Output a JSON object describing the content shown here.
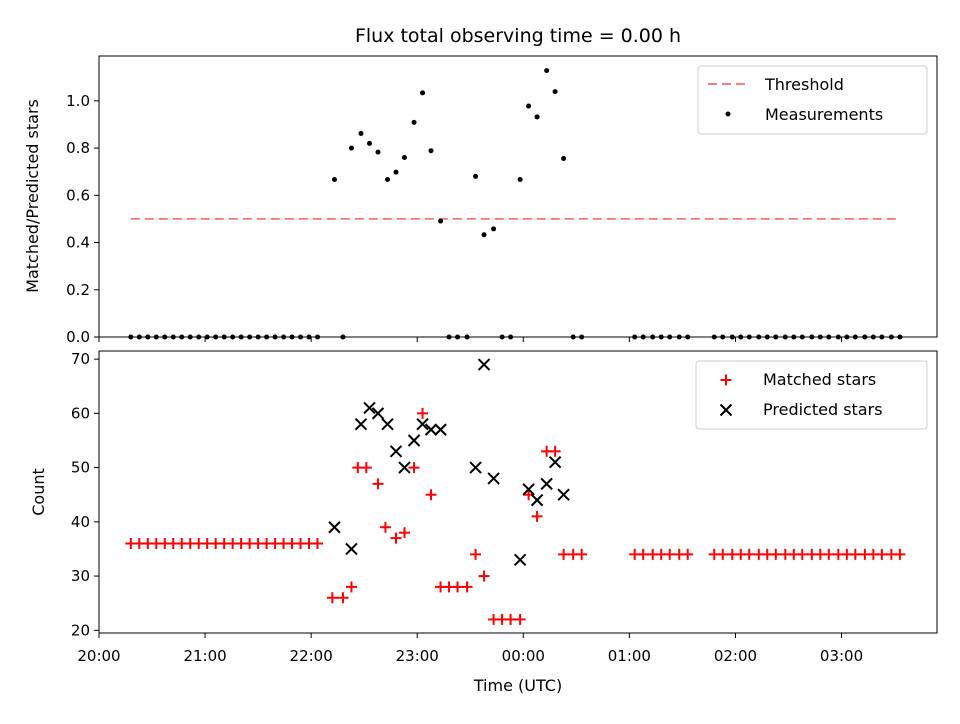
{
  "chart_data": [
    {
      "type": "scatter",
      "title": "Flux total observing time = 0.00 h",
      "xlabel": "",
      "ylabel": "Matched/Predicted stars",
      "xlim": [
        20.0,
        27.9
      ],
      "ylim": [
        0.0,
        1.19
      ],
      "yticks": [
        0.0,
        0.2,
        0.4,
        0.6,
        0.8,
        1.0
      ],
      "ytick_labels": [
        "0.0",
        "0.2",
        "0.4",
        "0.6",
        "0.8",
        "1.0"
      ],
      "legend_position": "upper right",
      "threshold": {
        "name": "Threshold",
        "y": 0.5,
        "x_start": 20.3,
        "x_end": 27.53,
        "color": "#f08080"
      },
      "series": [
        {
          "name": "Measurements",
          "color": "#000000",
          "x": [
            20.3,
            20.38,
            20.46,
            20.54,
            20.62,
            20.7,
            20.78,
            20.86,
            20.94,
            21.02,
            21.1,
            21.18,
            21.26,
            21.34,
            21.42,
            21.5,
            21.58,
            21.66,
            21.74,
            21.82,
            21.9,
            21.98,
            22.06,
            22.22,
            22.3,
            22.38,
            22.47,
            22.55,
            22.63,
            22.72,
            22.8,
            22.88,
            22.97,
            23.05,
            23.13,
            23.22,
            23.3,
            23.38,
            23.47,
            23.55,
            23.63,
            23.72,
            23.8,
            23.88,
            23.97,
            24.05,
            24.13,
            24.22,
            24.3,
            24.38,
            24.47,
            24.55,
            25.05,
            25.13,
            25.22,
            25.3,
            25.38,
            25.47,
            25.55,
            25.8,
            25.88,
            25.97,
            26.05,
            26.13,
            26.22,
            26.3,
            26.38,
            26.47,
            26.55,
            26.63,
            26.72,
            26.8,
            26.88,
            26.97,
            27.05,
            27.13,
            27.22,
            27.3,
            27.38,
            27.47,
            27.55
          ],
          "y": [
            0,
            0,
            0,
            0,
            0,
            0,
            0,
            0,
            0,
            0,
            0,
            0,
            0,
            0,
            0,
            0,
            0,
            0,
            0,
            0,
            0,
            0,
            0,
            0.667,
            0,
            0.8,
            0.862,
            0.82,
            0.783,
            0.667,
            0.698,
            0.76,
            0.909,
            1.034,
            0.789,
            0.491,
            0,
            0,
            0,
            0.68,
            0.433,
            0.458,
            0,
            0,
            0.667,
            0.978,
            0.932,
            1.128,
            1.039,
            0.756,
            0,
            0,
            0,
            0,
            0,
            0,
            0,
            0,
            0,
            0,
            0,
            0,
            0,
            0,
            0,
            0,
            0,
            0,
            0,
            0,
            0,
            0,
            0,
            0,
            0,
            0,
            0,
            0,
            0,
            0,
            0
          ]
        }
      ]
    },
    {
      "type": "scatter",
      "title": "",
      "xlabel": "Time (UTC)",
      "ylabel": "Count",
      "xlim": [
        20.0,
        27.9
      ],
      "ylim": [
        19.5,
        71.5
      ],
      "xticks": [
        20,
        21,
        22,
        23,
        24,
        25,
        26,
        27
      ],
      "xtick_labels": [
        "20:00",
        "21:00",
        "22:00",
        "23:00",
        "00:00",
        "01:00",
        "02:00",
        "03:00"
      ],
      "yticks": [
        20,
        30,
        40,
        50,
        60,
        70
      ],
      "ytick_labels": [
        "20",
        "30",
        "40",
        "50",
        "60",
        "70"
      ],
      "legend_position": "upper right",
      "series": [
        {
          "name": "Matched stars",
          "marker": "plus",
          "color": "#ff0000",
          "x": [
            20.3,
            20.38,
            20.46,
            20.54,
            20.62,
            20.7,
            20.78,
            20.86,
            20.94,
            21.02,
            21.1,
            21.18,
            21.26,
            21.34,
            21.42,
            21.5,
            21.58,
            21.66,
            21.74,
            21.82,
            21.9,
            21.98,
            22.06,
            22.2,
            22.3,
            22.38,
            22.44,
            22.52,
            22.63,
            22.7,
            22.8,
            22.88,
            22.97,
            23.05,
            23.13,
            23.22,
            23.3,
            23.38,
            23.47,
            23.55,
            23.63,
            23.72,
            23.8,
            23.88,
            23.97,
            24.05,
            24.13,
            24.22,
            24.3,
            24.38,
            24.47,
            24.55,
            25.05,
            25.13,
            25.22,
            25.3,
            25.38,
            25.47,
            25.55,
            25.8,
            25.88,
            25.97,
            26.05,
            26.13,
            26.22,
            26.3,
            26.38,
            26.47,
            26.55,
            26.63,
            26.72,
            26.8,
            26.88,
            26.97,
            27.05,
            27.13,
            27.22,
            27.3,
            27.38,
            27.47,
            27.55
          ],
          "y": [
            36,
            36,
            36,
            36,
            36,
            36,
            36,
            36,
            36,
            36,
            36,
            36,
            36,
            36,
            36,
            36,
            36,
            36,
            36,
            36,
            36,
            36,
            36,
            26,
            26,
            28,
            50,
            50,
            47,
            39,
            37,
            38,
            50,
            60,
            45,
            28,
            28,
            28,
            28,
            34,
            30,
            22,
            22,
            22,
            22,
            45,
            41,
            53,
            53,
            34,
            34,
            34,
            34,
            34,
            34,
            34,
            34,
            34,
            34,
            34,
            34,
            34,
            34,
            34,
            34,
            34,
            34,
            34,
            34,
            34,
            34,
            34,
            34,
            34,
            34,
            34,
            34,
            34,
            34,
            34,
            34
          ]
        },
        {
          "name": "Predicted stars",
          "marker": "x",
          "color": "#000000",
          "x": [
            22.22,
            22.38,
            22.47,
            22.55,
            22.63,
            22.72,
            22.8,
            22.88,
            22.97,
            23.05,
            23.13,
            23.22,
            23.55,
            23.63,
            23.72,
            23.97,
            24.05,
            24.13,
            24.22,
            24.3,
            24.38
          ],
          "y": [
            39,
            35,
            58,
            61,
            60,
            58,
            53,
            50,
            55,
            58,
            57,
            57,
            50,
            69,
            48,
            33,
            46,
            44,
            47,
            51,
            45
          ]
        }
      ]
    }
  ]
}
